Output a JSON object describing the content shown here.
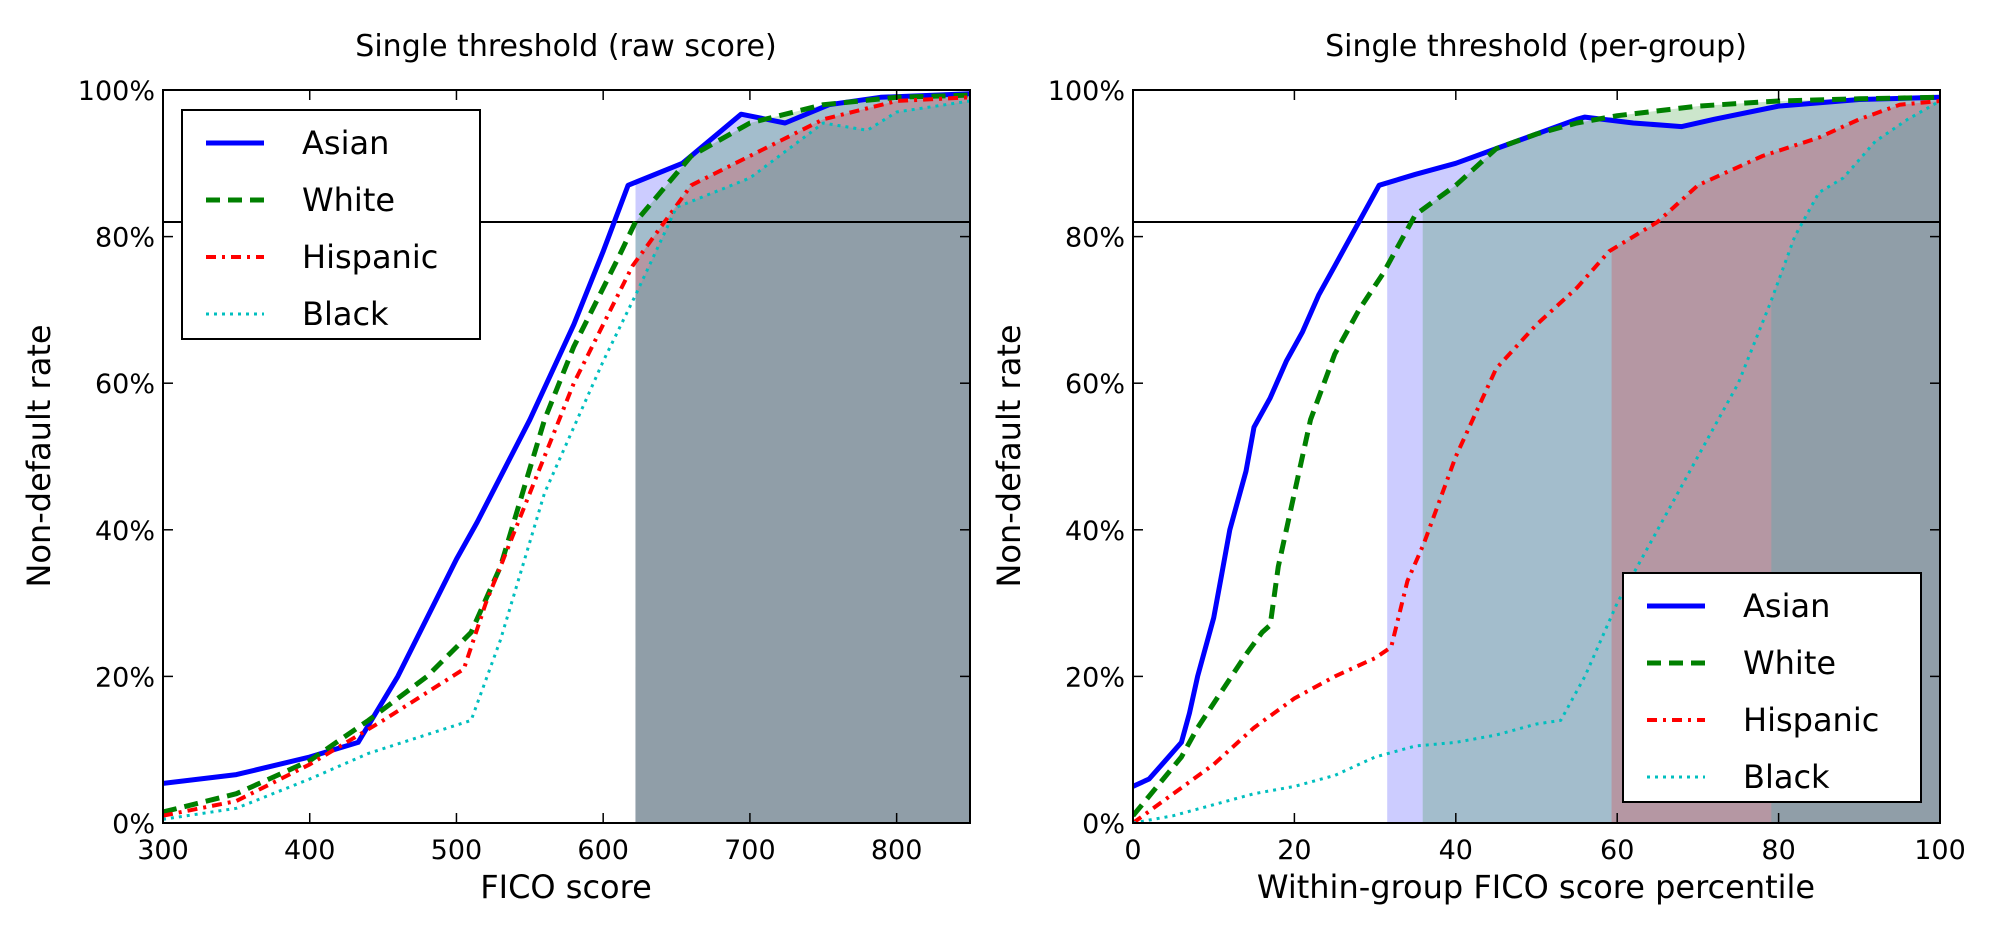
{
  "chart_data": [
    {
      "type": "line",
      "title": "Single threshold (raw score)",
      "xlabel": "FICO score",
      "ylabel": "Non-default rate",
      "xlim": [
        300,
        850
      ],
      "ylim": [
        0,
        100
      ],
      "xticks": [
        "300",
        "400",
        "500",
        "600",
        "700",
        "800"
      ],
      "xtick_values": [
        300,
        400,
        500,
        600,
        700,
        800
      ],
      "yticks": [
        "0%",
        "20%",
        "40%",
        "60%",
        "80%",
        "100%"
      ],
      "ytick_values": [
        0,
        20,
        40,
        60,
        80,
        100
      ],
      "legend_position": "upper-left",
      "reference_line": 82,
      "grid": false,
      "series": [
        {
          "name": "Asian",
          "color": "#0000ff",
          "style": "solid",
          "threshold": 622,
          "x": [
            300,
            350,
            400,
            433,
            460,
            500,
            514,
            550,
            580,
            600,
            617,
            654,
            694,
            724,
            754,
            789,
            850
          ],
          "y": [
            5.4,
            6.6,
            9,
            11,
            20,
            36,
            41,
            55,
            68,
            78,
            87,
            90,
            96.7,
            95.5,
            98,
            99,
            99.5
          ]
        },
        {
          "name": "White",
          "color": "#008000",
          "style": "dashed",
          "threshold": 622,
          "x": [
            300,
            350,
            400,
            440,
            480,
            510,
            530,
            560,
            580,
            610,
            622,
            660,
            700,
            750,
            800,
            850
          ],
          "y": [
            1.5,
            4,
            8.5,
            14,
            20,
            26,
            35,
            55,
            65,
            77,
            82,
            91,
            95.5,
            98,
            99,
            99.3
          ]
        },
        {
          "name": "Hispanic",
          "color": "#ff0000",
          "style": "dashdot",
          "threshold": 622,
          "x": [
            300,
            350,
            400,
            450,
            505,
            520,
            560,
            580,
            620,
            660,
            700,
            750,
            800,
            850
          ],
          "y": [
            1,
            3,
            8,
            14,
            21,
            30,
            50,
            60,
            76,
            87,
            91,
            96,
            98.5,
            99
          ]
        },
        {
          "name": "Black",
          "color": "#00bfbf",
          "style": "dotted",
          "threshold": 622,
          "x": [
            300,
            350,
            400,
            440,
            510,
            530,
            560,
            600,
            622,
            650,
            700,
            750,
            780,
            800,
            850
          ],
          "y": [
            0.5,
            2,
            6,
            9.5,
            14,
            25,
            45,
            63,
            72,
            84,
            88,
            95.5,
            94.5,
            97,
            98.5
          ]
        }
      ]
    },
    {
      "type": "line",
      "title": "Single threshold (per-group)",
      "xlabel": "Within-group FICO score percentile",
      "ylabel": "Non-default rate",
      "xlim": [
        0,
        100
      ],
      "ylim": [
        0,
        100
      ],
      "xticks": [
        "0",
        "20",
        "40",
        "60",
        "80",
        "100"
      ],
      "xtick_values": [
        0,
        20,
        40,
        60,
        80,
        100
      ],
      "yticks": [
        "0%",
        "20%",
        "40%",
        "60%",
        "80%",
        "100%"
      ],
      "ytick_values": [
        0,
        20,
        40,
        60,
        80,
        100
      ],
      "legend_position": "lower-right",
      "reference_line": 82,
      "grid": false,
      "series": [
        {
          "name": "Asian",
          "color": "#0000ff",
          "style": "solid",
          "threshold": 31.5,
          "x": [
            0,
            2,
            4,
            6,
            7,
            8,
            10,
            11,
            12,
            14,
            15,
            17,
            19,
            21,
            23,
            25,
            27,
            29,
            30.5,
            35,
            40,
            45,
            50,
            55,
            56,
            62,
            68,
            72,
            80,
            90,
            100
          ],
          "y": [
            5,
            6,
            8.5,
            11,
            15,
            20,
            28,
            34,
            40,
            48,
            54,
            58,
            63,
            67,
            72,
            76,
            80,
            84,
            87,
            88.5,
            90,
            92,
            94,
            96,
            96.3,
            95.5,
            95,
            96,
            97.8,
            98.7,
            99
          ]
        },
        {
          "name": "White",
          "color": "#008000",
          "style": "dashed",
          "threshold": 35.9,
          "x": [
            0,
            3,
            6,
            8,
            11,
            14,
            16,
            17,
            18,
            20,
            22,
            25,
            28,
            31,
            33,
            35,
            40,
            45,
            50,
            55,
            60,
            70,
            80,
            90,
            100
          ],
          "y": [
            1,
            5,
            9,
            13,
            18,
            23,
            26,
            27,
            35,
            45,
            55,
            64,
            70,
            75,
            79,
            83,
            87,
            92,
            94,
            95.5,
            96.5,
            97.8,
            98.5,
            98.8,
            99
          ]
        },
        {
          "name": "Hispanic",
          "color": "#ff0000",
          "style": "dashdot",
          "threshold": 59.3,
          "x": [
            0,
            5,
            10,
            15,
            20,
            25,
            30,
            32,
            34,
            36,
            40,
            45,
            50,
            55,
            59,
            65,
            70,
            78,
            85,
            90,
            95,
            100
          ],
          "y": [
            0,
            4,
            8,
            13,
            17,
            20,
            22.5,
            24,
            33,
            38,
            50,
            62,
            68,
            73,
            78,
            82,
            87,
            91,
            93.5,
            96,
            98,
            98.5
          ]
        },
        {
          "name": "Black",
          "color": "#00bfbf",
          "style": "dotted",
          "threshold": 79.1,
          "x": [
            0,
            5,
            10,
            15,
            20,
            25,
            30,
            35,
            40,
            45,
            50,
            53,
            56,
            60,
            65,
            70,
            75,
            79,
            82,
            85,
            88,
            92,
            96,
            100
          ],
          "y": [
            0,
            1,
            2.5,
            4,
            5,
            6.5,
            9,
            10.5,
            11,
            12,
            13.5,
            14,
            20,
            30,
            40,
            50,
            60,
            71,
            80,
            86,
            88,
            93,
            96,
            98.5
          ]
        }
      ]
    }
  ]
}
